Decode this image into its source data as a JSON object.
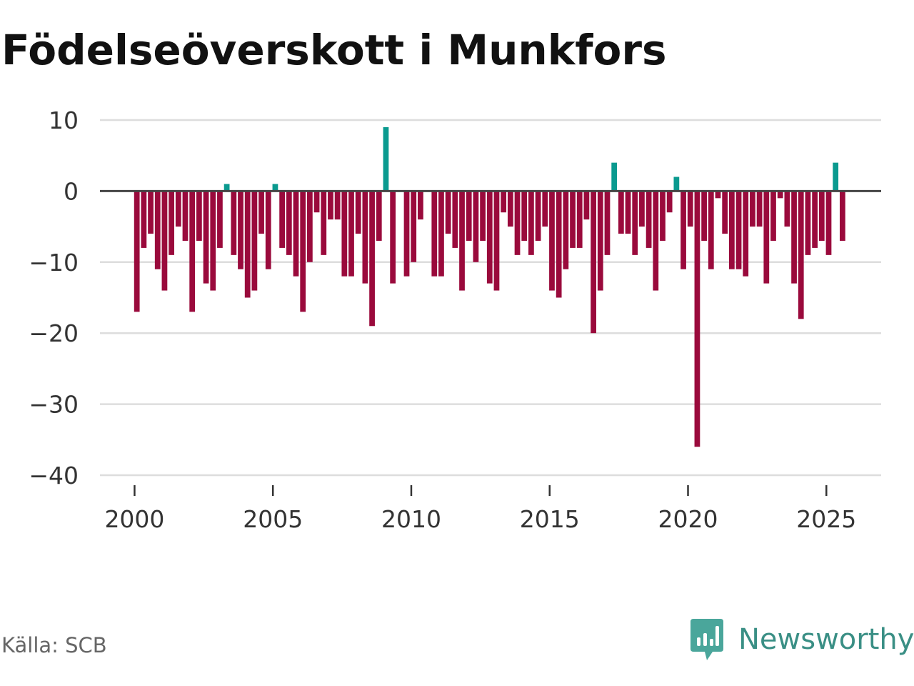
{
  "title": "Födelseöverskott i Munkfors",
  "source": "Källa: SCB",
  "brand": {
    "name": "Newsworthy",
    "icon": "newsworthy-logo-icon"
  },
  "colors": {
    "positive": "#0a9a8f",
    "negative": "#9a0a3c",
    "grid": "#dddddd",
    "zero_line": "#444444",
    "text": "#333333"
  },
  "chart_data": {
    "type": "bar",
    "x_start": "2000-02",
    "interval": "quarter",
    "values": [
      -17,
      -8,
      -6,
      -11,
      -14,
      -9,
      -5,
      -7,
      -17,
      -7,
      -13,
      -14,
      -8,
      1,
      -9,
      -11,
      -15,
      -14,
      -6,
      -11,
      1,
      -8,
      -9,
      -12,
      -17,
      -10,
      -3,
      -9,
      -4,
      -4,
      -12,
      -12,
      -6,
      -13,
      -19,
      -7,
      9,
      -13,
      0,
      -12,
      -10,
      -4,
      0,
      -12,
      -12,
      -6,
      -8,
      -14,
      -7,
      -10,
      -7,
      -13,
      -14,
      -3,
      -5,
      -9,
      -7,
      -9,
      -7,
      -5,
      -14,
      -15,
      -11,
      -8,
      -8,
      -4,
      -20,
      -14,
      -9,
      4,
      -6,
      -6,
      -9,
      -5,
      -8,
      -14,
      -7,
      -3,
      2,
      -11,
      -5,
      -36,
      -7,
      -11,
      -1,
      -6,
      -11,
      -11,
      -12,
      -5,
      -5,
      -13,
      -7,
      -1,
      -5,
      -13,
      -18,
      -9,
      -8,
      -7,
      -9,
      4,
      -7
    ],
    "xticks": [
      2000,
      2005,
      2010,
      2015,
      2020,
      2025
    ],
    "yticks": [
      10,
      0,
      -10,
      -20,
      -30,
      -40
    ],
    "ylim": [
      -40,
      10
    ],
    "xlim": [
      1998.75,
      2026.98
    ],
    "grid": true,
    "legend": "none"
  }
}
